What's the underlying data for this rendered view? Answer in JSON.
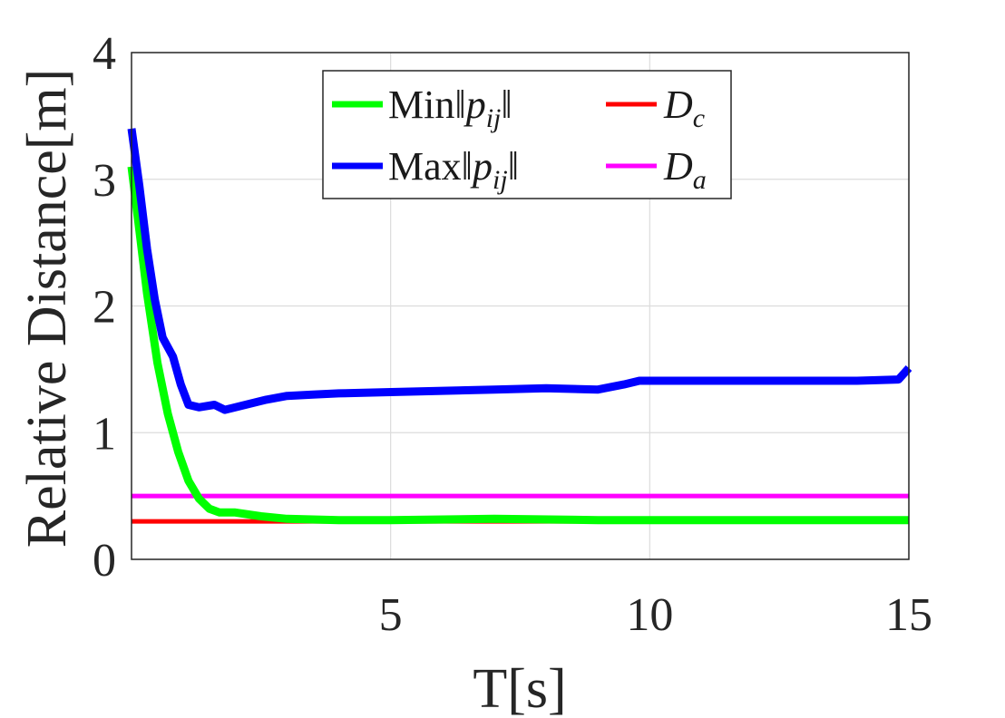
{
  "chart_data": {
    "type": "line",
    "xlabel": "T[s]",
    "ylabel": "Relative Distance[m]",
    "xlim": [
      0,
      15
    ],
    "ylim": [
      0,
      4
    ],
    "xticks": [
      5,
      10,
      15
    ],
    "yticks": [
      0,
      1,
      2,
      3,
      4
    ],
    "grid": true,
    "legend_position": "top",
    "series": [
      {
        "name": "Min||p_ij||",
        "color": "#00ff00",
        "points": [
          [
            0,
            3.1
          ],
          [
            0.15,
            2.6
          ],
          [
            0.3,
            2.1
          ],
          [
            0.5,
            1.55
          ],
          [
            0.7,
            1.15
          ],
          [
            0.9,
            0.85
          ],
          [
            1.1,
            0.62
          ],
          [
            1.3,
            0.48
          ],
          [
            1.5,
            0.4
          ],
          [
            1.7,
            0.37
          ],
          [
            2.0,
            0.37
          ],
          [
            2.5,
            0.34
          ],
          [
            3.0,
            0.32
          ],
          [
            4.0,
            0.31
          ],
          [
            5.0,
            0.31
          ],
          [
            7.0,
            0.32
          ],
          [
            9.0,
            0.31
          ],
          [
            11.0,
            0.31
          ],
          [
            13.0,
            0.31
          ],
          [
            15.0,
            0.31
          ]
        ]
      },
      {
        "name": "Max||p_ij||",
        "color": "#0000ff",
        "points": [
          [
            0,
            3.4
          ],
          [
            0.15,
            2.95
          ],
          [
            0.3,
            2.45
          ],
          [
            0.45,
            2.05
          ],
          [
            0.6,
            1.75
          ],
          [
            0.8,
            1.6
          ],
          [
            0.95,
            1.38
          ],
          [
            1.1,
            1.22
          ],
          [
            1.3,
            1.2
          ],
          [
            1.6,
            1.22
          ],
          [
            1.8,
            1.18
          ],
          [
            2.2,
            1.22
          ],
          [
            2.6,
            1.26
          ],
          [
            3.0,
            1.29
          ],
          [
            3.5,
            1.3
          ],
          [
            4.0,
            1.31
          ],
          [
            5.0,
            1.32
          ],
          [
            6.0,
            1.33
          ],
          [
            7.0,
            1.34
          ],
          [
            8.0,
            1.35
          ],
          [
            9.0,
            1.34
          ],
          [
            9.5,
            1.38
          ],
          [
            9.8,
            1.41
          ],
          [
            11.0,
            1.41
          ],
          [
            12.0,
            1.41
          ],
          [
            13.0,
            1.41
          ],
          [
            14.0,
            1.41
          ],
          [
            14.8,
            1.42
          ],
          [
            15.0,
            1.51
          ]
        ]
      },
      {
        "name": "D_c",
        "color": "#ff0000",
        "points": [
          [
            0,
            0.3
          ],
          [
            15,
            0.3
          ]
        ]
      },
      {
        "name": "D_a",
        "color": "#ff00ff",
        "points": [
          [
            0,
            0.5
          ],
          [
            15,
            0.5
          ]
        ]
      }
    ]
  }
}
